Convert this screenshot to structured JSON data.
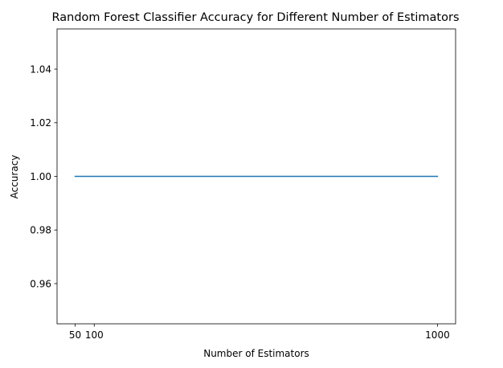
{
  "chart_data": {
    "type": "line",
    "title": "Random Forest Classifier Accuracy for Different Number of Estimators",
    "xlabel": "Number of Estimators",
    "ylabel": "Accuracy",
    "x": [
      50,
      100,
      1000
    ],
    "series": [
      {
        "values": [
          1.0,
          1.0,
          1.0
        ],
        "color": "#1f77b4"
      }
    ],
    "xticks": [
      50,
      100,
      1000
    ],
    "xtick_labels": [
      "50",
      "100",
      "1000"
    ],
    "yticks": [
      0.96,
      0.98,
      1.0,
      1.02,
      1.04
    ],
    "ytick_labels": [
      "0.96",
      "0.98",
      "1.00",
      "1.02",
      "1.04"
    ],
    "xlim": [
      2.5,
      1047.5
    ],
    "ylim": [
      0.945,
      1.055
    ],
    "grid": false,
    "legend": "none"
  }
}
